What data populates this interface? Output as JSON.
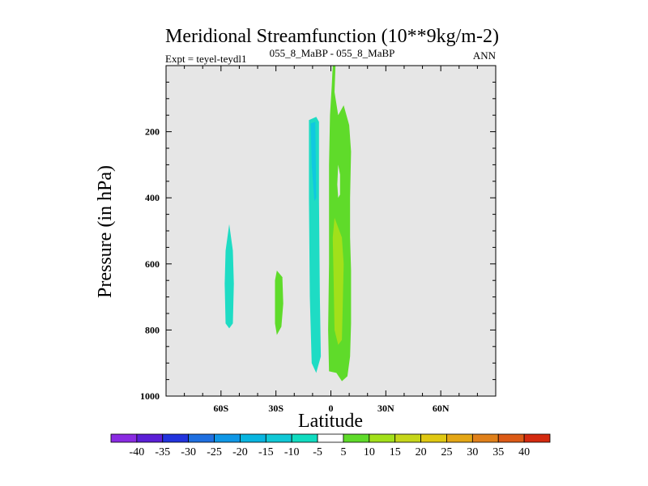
{
  "chart_data": {
    "type": "contour",
    "title": "Meridional Streamfunction (10**9kg/m-2)",
    "left_string": "Expt = teyel-teydl1",
    "center_string": "055_8_MaBP - 055_8_MaBP",
    "right_string": "ANN",
    "xlabel": "Latitude",
    "ylabel": "Pressure (in hPa)",
    "xlim": [
      -90,
      90
    ],
    "ylim": [
      1000,
      0
    ],
    "x_ticks": [
      {
        "value": -60,
        "label": "60S"
      },
      {
        "value": -30,
        "label": "30S"
      },
      {
        "value": 0,
        "label": "0"
      },
      {
        "value": 30,
        "label": "30N"
      },
      {
        "value": 60,
        "label": "60N"
      }
    ],
    "y_ticks": [
      {
        "value": 200,
        "label": "200"
      },
      {
        "value": 400,
        "label": "400"
      },
      {
        "value": 600,
        "label": "600"
      },
      {
        "value": 800,
        "label": "800"
      },
      {
        "value": 1000,
        "label": "1000"
      }
    ],
    "background_color": "#e6e6e6",
    "contour_levels": [
      -40,
      -35,
      -30,
      -25,
      -20,
      -15,
      -10,
      -5,
      5,
      10,
      15,
      20,
      25,
      30,
      35,
      40
    ],
    "level_colors": [
      "#8a2be2",
      "#5b1fd6",
      "#2233dd",
      "#1f6fe0",
      "#0f97e6",
      "#08b5e0",
      "#10c8d6",
      "#10dcc0",
      "#ffffff",
      "#5fdb2a",
      "#a2e01a",
      "#c6d61a",
      "#e0c812",
      "#e4a615",
      "#e0801a",
      "#dc5a16",
      "#d42a0f"
    ],
    "regions": [
      {
        "name": "southern-midlat-cell",
        "value": -10,
        "color": "#1edcc4",
        "outline": [
          [
            -55.5,
            480
          ],
          [
            -53.5,
            560
          ],
          [
            -53,
            660
          ],
          [
            -53.5,
            780
          ],
          [
            -55.5,
            795
          ],
          [
            -57.5,
            780
          ],
          [
            -58,
            660
          ],
          [
            -57.5,
            560
          ]
        ]
      },
      {
        "name": "southern-subtropical-cell",
        "value": 10,
        "color": "#5fdb2a",
        "outline": [
          [
            -29.5,
            620
          ],
          [
            -26.5,
            640
          ],
          [
            -26,
            720
          ],
          [
            -27,
            790
          ],
          [
            -29.5,
            815
          ],
          [
            -30.5,
            780
          ],
          [
            -30.5,
            650
          ]
        ]
      },
      {
        "name": "hadley-south-negative",
        "value": -10,
        "color": "#1edcc4",
        "outline": [
          [
            -12,
            165
          ],
          [
            -8,
            155
          ],
          [
            -6.5,
            170
          ],
          [
            -6.5,
            400
          ],
          [
            -6,
            700
          ],
          [
            -5.5,
            880
          ],
          [
            -8,
            930
          ],
          [
            -10.5,
            900
          ],
          [
            -11.5,
            700
          ],
          [
            -12,
            400
          ]
        ]
      },
      {
        "name": "hadley-south-core",
        "value": -15,
        "color": "#10c8e0",
        "outline": [
          [
            -11,
            175
          ],
          [
            -8.5,
            170
          ],
          [
            -8,
            400
          ],
          [
            -9,
            410
          ],
          [
            -10.5,
            300
          ]
        ]
      },
      {
        "name": "hadley-north-positive",
        "value": 10,
        "color": "#5fdb2a",
        "outline": [
          [
            1,
            0
          ],
          [
            2.5,
            0
          ],
          [
            2,
            80
          ],
          [
            4,
            150
          ],
          [
            7,
            120
          ],
          [
            10,
            180
          ],
          [
            11,
            260
          ],
          [
            10.5,
            400
          ],
          [
            10.5,
            520
          ],
          [
            11,
            620
          ],
          [
            11,
            780
          ],
          [
            10.5,
            880
          ],
          [
            9,
            940
          ],
          [
            6,
            955
          ],
          [
            3,
            930
          ],
          [
            -1,
            925
          ],
          [
            -1.5,
            800
          ],
          [
            -1,
            600
          ],
          [
            -1,
            300
          ],
          [
            -0.5,
            150
          ],
          [
            0.5,
            60
          ]
        ]
      },
      {
        "name": "hadley-north-core",
        "value": 15,
        "color": "#a2e01a",
        "outline": [
          [
            2,
            460
          ],
          [
            6,
            520
          ],
          [
            7,
            600
          ],
          [
            6.5,
            720
          ],
          [
            6,
            830
          ],
          [
            4,
            845
          ],
          [
            2,
            800
          ],
          [
            1.5,
            650
          ],
          [
            1,
            520
          ]
        ]
      },
      {
        "name": "hadley-gap",
        "value": 0,
        "color": "#e6e6e6",
        "outline": [
          [
            4,
            300
          ],
          [
            5,
            330
          ],
          [
            5,
            390
          ],
          [
            4,
            400
          ],
          [
            3.5,
            360
          ]
        ]
      }
    ],
    "colorbar_labels": [
      "-40",
      "-35",
      "-30",
      "-25",
      "-20",
      "-15",
      "-10",
      "-5",
      "5",
      "10",
      "15",
      "20",
      "25",
      "30",
      "35",
      "40"
    ]
  }
}
